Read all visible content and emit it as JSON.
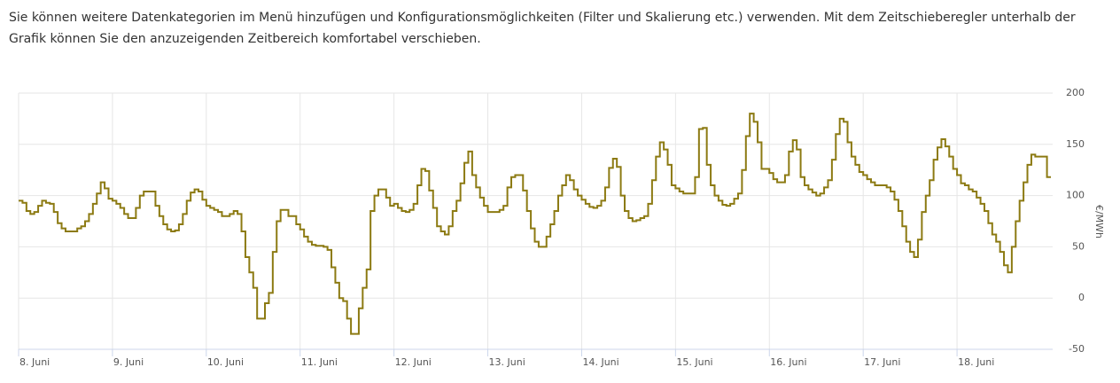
{
  "intro": "Sie können weitere Datenkategorien im Menü hinzufügen und Konfigurationsmöglichkeiten (Filter und Skalierung etc.) verwenden. Mit dem Zeitschieberegler unterhalb der Grafik können Sie den anzuzeigenden Zeitbereich komfortabel verschieben.",
  "chart_data": {
    "type": "step-line",
    "ylabel": "€/MWh",
    "color": "#8c7a12",
    "grid": true,
    "xlim": [
      0,
      264
    ],
    "xticks": [
      {
        "value": 0,
        "label": "8. Juni"
      },
      {
        "value": 24,
        "label": "9. Juni"
      },
      {
        "value": 48,
        "label": "10. Juni"
      },
      {
        "value": 72,
        "label": "11. Juni"
      },
      {
        "value": 96,
        "label": "12. Juni"
      },
      {
        "value": 120,
        "label": "13. Juni"
      },
      {
        "value": 144,
        "label": "14. Juni"
      },
      {
        "value": 168,
        "label": "15. Juni"
      },
      {
        "value": 192,
        "label": "16. Juni"
      },
      {
        "value": 216,
        "label": "17. Juni"
      },
      {
        "value": 240,
        "label": "18. Juni"
      }
    ],
    "ylim": [
      -50,
      200
    ],
    "yticks": [
      -50,
      0,
      50,
      100,
      150,
      200
    ],
    "x": [
      0,
      1,
      2,
      3,
      4,
      5,
      6,
      7,
      8,
      9,
      10,
      11,
      12,
      13,
      14,
      15,
      16,
      17,
      18,
      19,
      20,
      21,
      22,
      23,
      24,
      25,
      26,
      27,
      28,
      29,
      30,
      31,
      32,
      33,
      34,
      35,
      36,
      37,
      38,
      39,
      40,
      41,
      42,
      43,
      44,
      45,
      46,
      47,
      48,
      49,
      50,
      51,
      52,
      53,
      54,
      55,
      56,
      57,
      58,
      59,
      60,
      61,
      62,
      63,
      64,
      65,
      66,
      67,
      68,
      69,
      70,
      71,
      72,
      73,
      74,
      75,
      76,
      77,
      78,
      79,
      80,
      81,
      82,
      83,
      84,
      85,
      86,
      87,
      88,
      89,
      90,
      91,
      92,
      93,
      94,
      95,
      96,
      97,
      98,
      99,
      100,
      101,
      102,
      103,
      104,
      105,
      106,
      107,
      108,
      109,
      110,
      111,
      112,
      113,
      114,
      115,
      116,
      117,
      118,
      119,
      120,
      121,
      122,
      123,
      124,
      125,
      126,
      127,
      128,
      129,
      130,
      131,
      132,
      133,
      134,
      135,
      136,
      137,
      138,
      139,
      140,
      141,
      142,
      143,
      144,
      145,
      146,
      147,
      148,
      149,
      150,
      151,
      152,
      153,
      154,
      155,
      156,
      157,
      158,
      159,
      160,
      161,
      162,
      163,
      164,
      165,
      166,
      167,
      168,
      169,
      170,
      171,
      172,
      173,
      174,
      175,
      176,
      177,
      178,
      179,
      180,
      181,
      182,
      183,
      184,
      185,
      186,
      187,
      188,
      189,
      190,
      191,
      192,
      193,
      194,
      195,
      196,
      197,
      198,
      199,
      200,
      201,
      202,
      203,
      204,
      205,
      206,
      207,
      208,
      209,
      210,
      211,
      212,
      213,
      214,
      215,
      216,
      217,
      218,
      219,
      220,
      221,
      222,
      223,
      224,
      225,
      226,
      227,
      228,
      229,
      230,
      231,
      232,
      233,
      234,
      235,
      236,
      237,
      238,
      239,
      240,
      241,
      242,
      243,
      244,
      245,
      246,
      247,
      248,
      249,
      250,
      251,
      252,
      253,
      254,
      255,
      256,
      257,
      258,
      259,
      260,
      261,
      262,
      263
    ],
    "values": [
      95,
      93,
      85,
      82,
      84,
      90,
      95,
      93,
      92,
      84,
      73,
      68,
      65,
      65,
      65,
      68,
      70,
      75,
      82,
      92,
      102,
      113,
      107,
      97,
      95,
      92,
      88,
      82,
      78,
      78,
      88,
      100,
      104,
      104,
      104,
      90,
      80,
      72,
      67,
      65,
      66,
      72,
      82,
      95,
      103,
      106,
      104,
      96,
      90,
      88,
      86,
      84,
      80,
      80,
      82,
      85,
      82,
      65,
      40,
      25,
      10,
      -20,
      -20,
      -5,
      5,
      45,
      75,
      86,
      86,
      80,
      80,
      72,
      67,
      60,
      55,
      52,
      51,
      51,
      50,
      47,
      30,
      15,
      0,
      -3,
      -20,
      -35,
      -35,
      -10,
      10,
      28,
      85,
      100,
      106,
      106,
      98,
      90,
      92,
      88,
      85,
      84,
      86,
      92,
      110,
      126,
      124,
      105,
      88,
      70,
      65,
      62,
      70,
      85,
      95,
      112,
      132,
      143,
      120,
      108,
      98,
      90,
      84,
      84,
      84,
      86,
      90,
      108,
      118,
      120,
      120,
      105,
      85,
      68,
      55,
      50,
      50,
      60,
      72,
      85,
      100,
      110,
      120,
      115,
      106,
      100,
      96,
      92,
      89,
      88,
      90,
      95,
      108,
      127,
      136,
      128,
      100,
      85,
      78,
      75,
      76,
      78,
      80,
      92,
      115,
      138,
      152,
      145,
      130,
      110,
      107,
      104,
      102,
      102,
      102,
      118,
      165,
      166,
      130,
      110,
      100,
      95,
      91,
      90,
      92,
      97,
      102,
      125,
      158,
      180,
      172,
      152,
      126,
      126,
      122,
      116,
      113,
      113,
      120,
      143,
      154,
      145,
      118,
      110,
      106,
      103,
      100,
      102,
      108,
      115,
      135,
      160,
      175,
      172,
      152,
      138,
      130,
      123,
      120,
      116,
      113,
      110,
      110,
      110,
      108,
      104,
      96,
      85,
      70,
      55,
      45,
      40,
      57,
      84,
      100,
      115,
      135,
      147,
      155,
      148,
      138,
      126,
      120,
      112,
      110,
      106,
      104,
      98,
      92,
      85,
      73,
      62,
      55,
      45,
      32,
      25,
      50,
      75,
      95,
      113,
      130,
      140,
      138,
      138,
      138,
      118
    ]
  }
}
